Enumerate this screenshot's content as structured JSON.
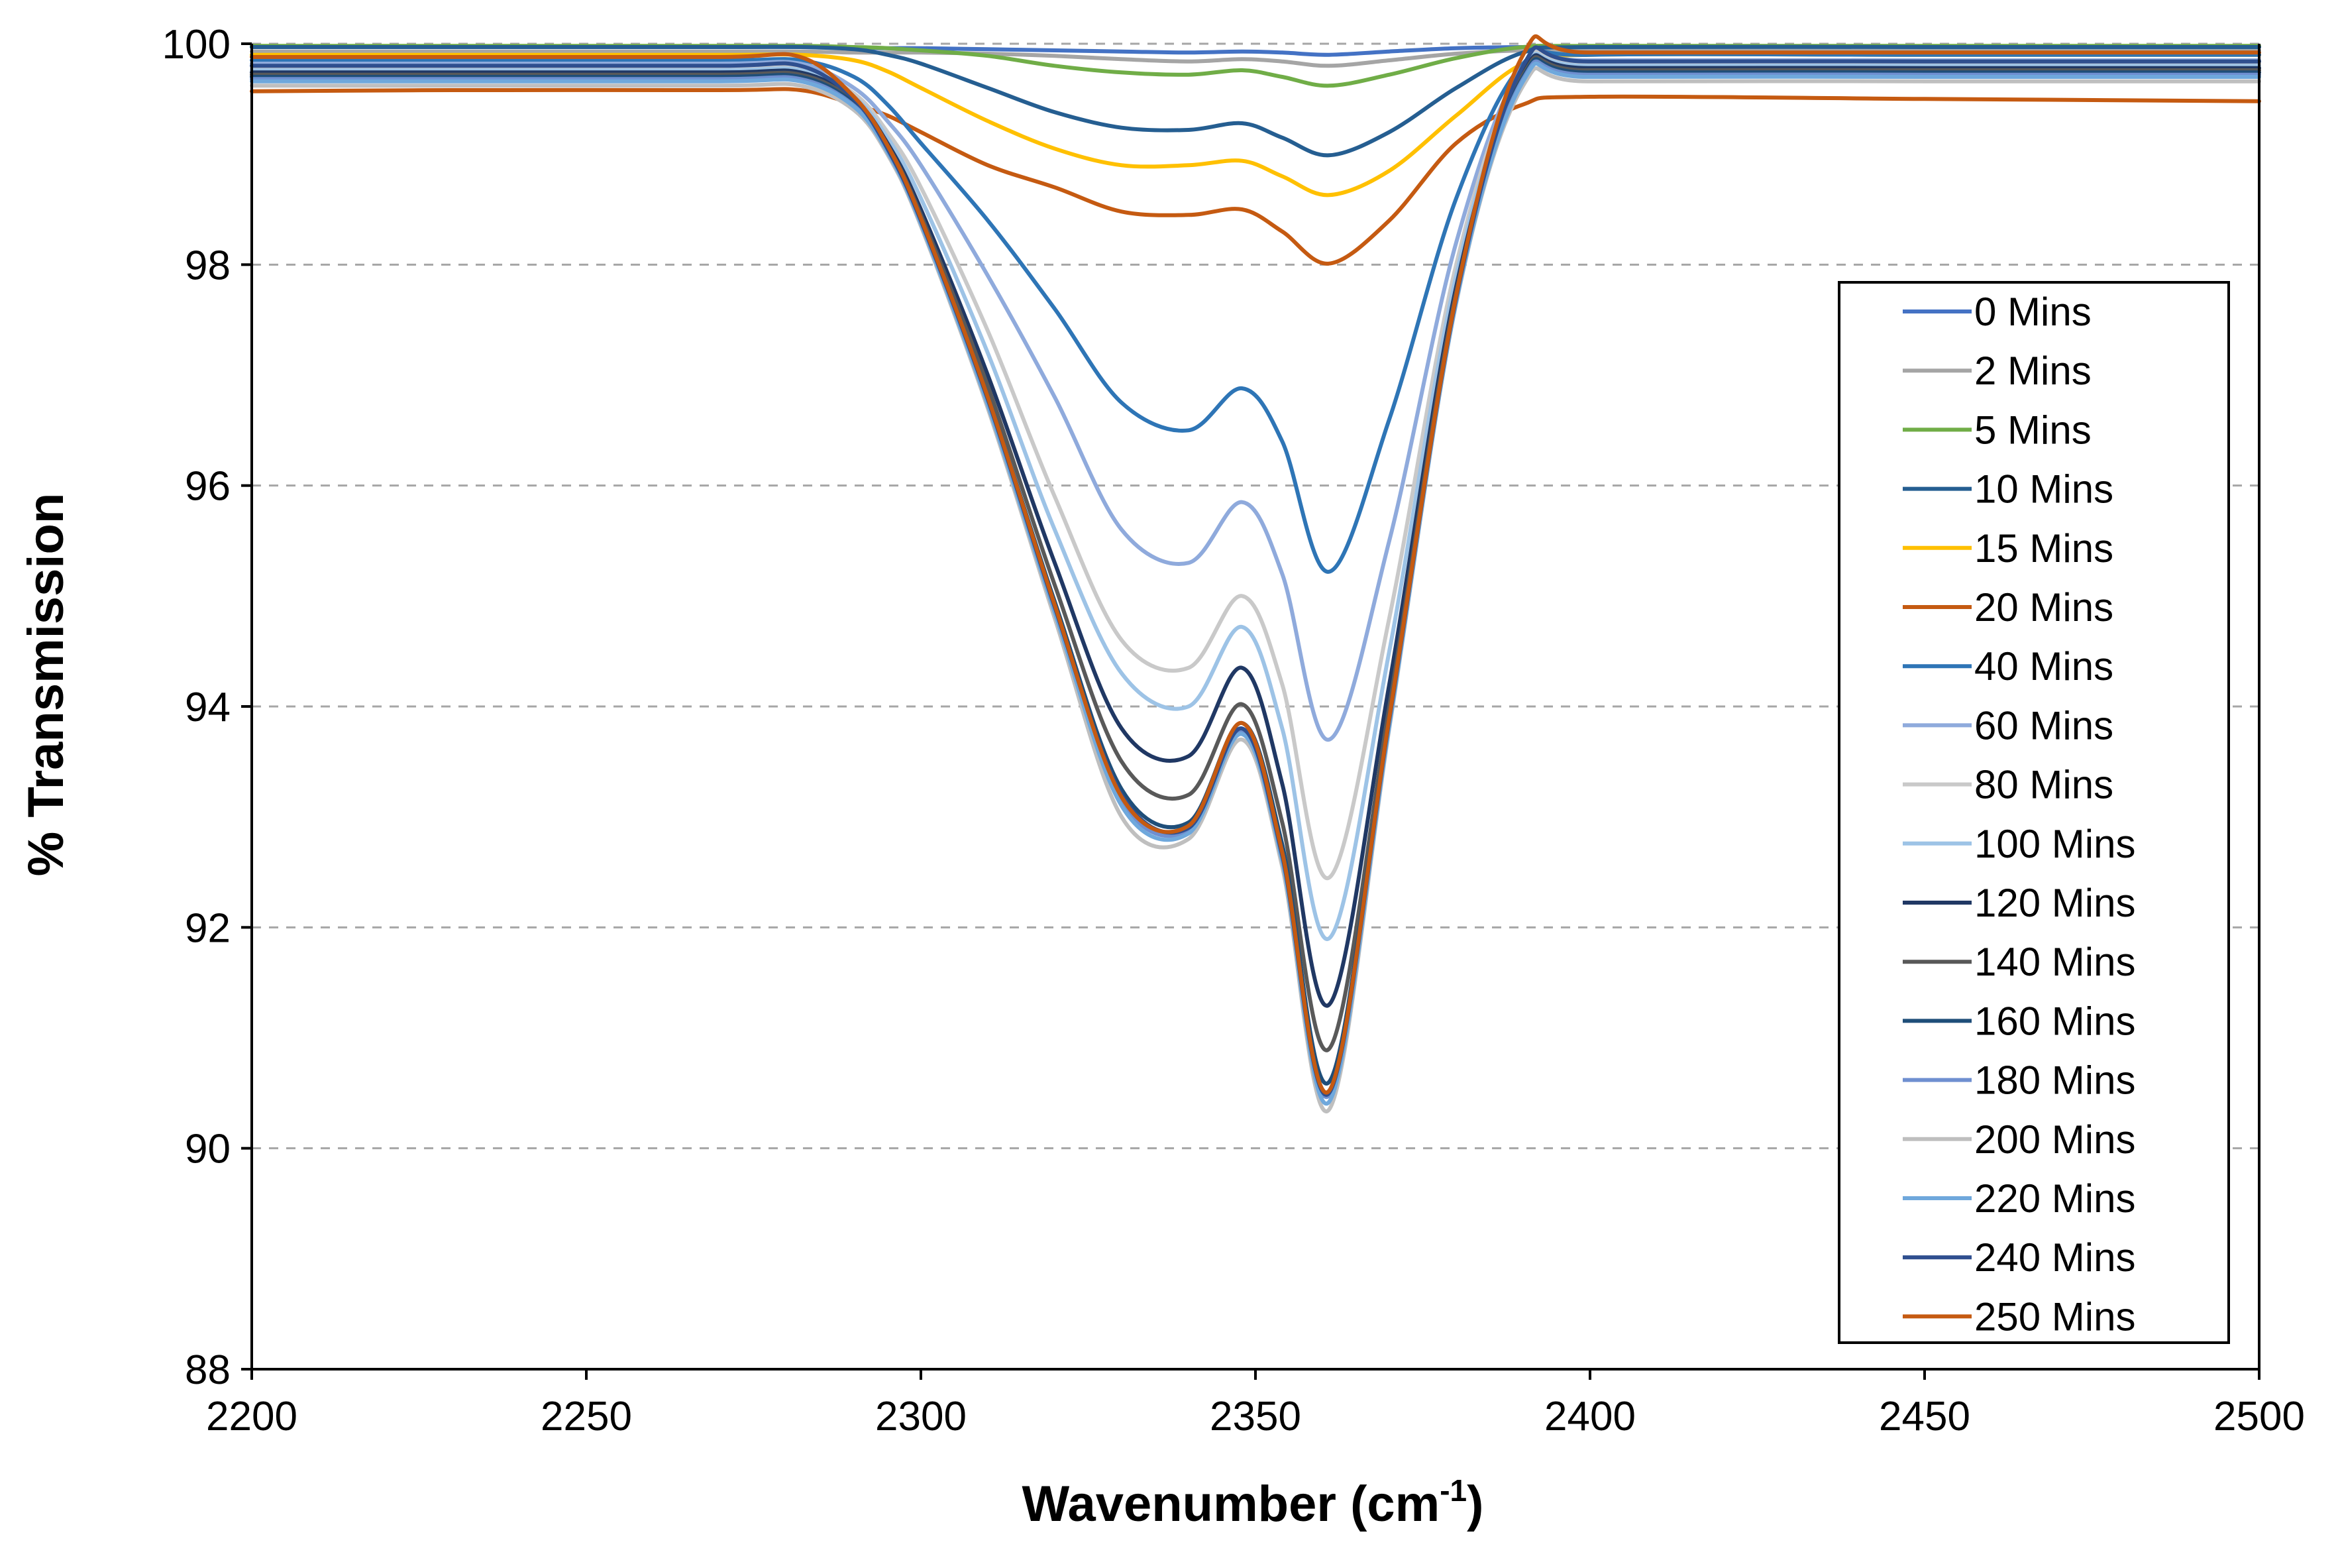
{
  "chart_data": {
    "type": "line",
    "title": "",
    "xlabel": "Wavenumber (cm",
    "xlabel_sup": "-1",
    "xlabel_close": ")",
    "ylabel": "% Transmission",
    "xlim": [
      2200,
      2500
    ],
    "ylim": [
      88,
      100
    ],
    "xticks": [
      2200,
      2250,
      2300,
      2350,
      2400,
      2450,
      2500
    ],
    "yticks": [
      88,
      90,
      92,
      94,
      96,
      98,
      100
    ],
    "xtick_labels": [
      "2200",
      "2250",
      "2300",
      "2350",
      "2400",
      "2450",
      "2500"
    ],
    "ytick_labels": [
      "88",
      "90",
      "92",
      "94",
      "96",
      "98",
      "100"
    ],
    "grid": "horizontal dashed",
    "legend_position": "right",
    "x": [
      2200,
      2230,
      2270,
      2282,
      2290,
      2295,
      2300,
      2310,
      2320,
      2330,
      2340,
      2348,
      2354,
      2361,
      2370,
      2380,
      2390,
      2400,
      2450,
      2500
    ],
    "series": [
      {
        "name": "0 Mins",
        "color": "#4472c4",
        "values": [
          99.97,
          99.97,
          99.97,
          99.97,
          99.96,
          99.96,
          99.96,
          99.95,
          99.94,
          99.93,
          99.92,
          99.93,
          99.92,
          99.9,
          99.93,
          99.96,
          99.97,
          99.97,
          99.97,
          99.97
        ]
      },
      {
        "name": "2 Mins",
        "color": "#a5a5a5",
        "values": [
          99.93,
          99.93,
          99.93,
          99.93,
          99.92,
          99.92,
          99.92,
          99.91,
          99.89,
          99.86,
          99.84,
          99.86,
          99.84,
          99.8,
          99.85,
          99.91,
          99.94,
          99.94,
          99.94,
          99.94
        ]
      },
      {
        "name": "5 Mins",
        "color": "#70ad47",
        "values": [
          99.98,
          99.98,
          99.98,
          99.98,
          99.97,
          99.96,
          99.94,
          99.89,
          99.8,
          99.74,
          99.72,
          99.76,
          99.7,
          99.62,
          99.72,
          99.87,
          99.97,
          99.98,
          99.98,
          99.98
        ]
      },
      {
        "name": "10 Mins",
        "color": "#255e91",
        "values": [
          99.97,
          99.97,
          99.97,
          99.97,
          99.95,
          99.9,
          99.82,
          99.6,
          99.38,
          99.24,
          99.22,
          99.28,
          99.15,
          98.99,
          99.2,
          99.6,
          99.92,
          99.97,
          99.97,
          99.97
        ]
      },
      {
        "name": "15 Mins",
        "color": "#ffc000",
        "values": [
          99.9,
          99.9,
          99.9,
          99.9,
          99.85,
          99.75,
          99.6,
          99.3,
          99.05,
          98.9,
          98.9,
          98.94,
          98.8,
          98.63,
          98.85,
          99.35,
          99.82,
          99.9,
          99.9,
          99.9
        ]
      },
      {
        "name": "20 Mins",
        "color": "#c55a11",
        "values": [
          99.57,
          99.58,
          99.58,
          99.58,
          99.45,
          99.35,
          99.2,
          98.9,
          98.7,
          98.48,
          98.45,
          98.5,
          98.3,
          98.01,
          98.4,
          99.1,
          99.45,
          99.52,
          99.5,
          99.48
        ]
      },
      {
        "name": "40 Mins",
        "color": "#2e75b6",
        "values": [
          99.85,
          99.85,
          99.85,
          99.85,
          99.7,
          99.45,
          99.1,
          98.4,
          97.6,
          96.75,
          96.5,
          96.88,
          96.4,
          95.22,
          96.6,
          98.6,
          99.82,
          99.9,
          99.9,
          99.9
        ]
      },
      {
        "name": "60 Mins",
        "color": "#8faadc",
        "values": [
          99.82,
          99.82,
          99.82,
          99.82,
          99.6,
          99.3,
          98.9,
          97.9,
          96.8,
          95.6,
          95.3,
          95.85,
          95.2,
          93.7,
          95.5,
          98.2,
          99.8,
          99.85,
          99.85,
          99.85
        ]
      },
      {
        "name": "80 Mins",
        "color": "#c9c9c9",
        "values": [
          99.78,
          99.78,
          99.78,
          99.78,
          99.55,
          99.2,
          98.7,
          97.4,
          95.9,
          94.6,
          94.35,
          95.0,
          94.2,
          92.45,
          94.8,
          98.0,
          99.78,
          99.82,
          99.82,
          99.82
        ]
      },
      {
        "name": "100 Mins",
        "color": "#9dc3e6",
        "values": [
          99.76,
          99.76,
          99.76,
          99.76,
          99.52,
          99.15,
          98.6,
          97.2,
          95.6,
          94.3,
          94.0,
          94.72,
          93.8,
          91.9,
          94.5,
          97.9,
          99.76,
          99.8,
          99.8,
          99.8
        ]
      },
      {
        "name": "120 Mins",
        "color": "#203864",
        "values": [
          99.74,
          99.74,
          99.74,
          99.74,
          99.5,
          99.1,
          98.5,
          97.0,
          95.3,
          93.8,
          93.55,
          94.35,
          93.3,
          91.3,
          94.2,
          97.8,
          99.74,
          99.78,
          99.78,
          99.78
        ]
      },
      {
        "name": "140 Mins",
        "color": "#595959",
        "values": [
          99.72,
          99.72,
          99.72,
          99.72,
          99.48,
          99.08,
          98.45,
          96.9,
          95.1,
          93.5,
          93.2,
          94.02,
          92.95,
          90.9,
          94.0,
          97.75,
          99.72,
          99.76,
          99.76,
          99.76
        ]
      },
      {
        "name": "160 Mins",
        "color": "#1f4e79",
        "values": [
          99.7,
          99.7,
          99.7,
          99.7,
          99.46,
          99.05,
          98.4,
          96.8,
          94.95,
          93.25,
          92.95,
          93.85,
          92.75,
          90.6,
          93.9,
          97.7,
          99.7,
          99.74,
          99.74,
          99.74
        ]
      },
      {
        "name": "180 Mins",
        "color": "#6f8fd0",
        "values": [
          99.68,
          99.68,
          99.68,
          99.68,
          99.44,
          99.03,
          98.38,
          96.75,
          94.9,
          93.15,
          92.88,
          93.78,
          92.65,
          90.48,
          93.85,
          97.68,
          99.68,
          99.72,
          99.72,
          99.72
        ]
      },
      {
        "name": "200 Mins",
        "color": "#bfbfbf",
        "values": [
          99.62,
          99.62,
          99.62,
          99.62,
          99.4,
          99.0,
          98.35,
          96.7,
          94.8,
          93.0,
          92.8,
          93.7,
          92.55,
          90.35,
          93.8,
          97.65,
          99.62,
          99.66,
          99.66,
          99.66
        ]
      },
      {
        "name": "220 Mins",
        "color": "#6fa8dc",
        "values": [
          99.66,
          99.66,
          99.66,
          99.66,
          99.43,
          99.02,
          98.37,
          96.73,
          94.85,
          93.1,
          92.85,
          93.75,
          92.6,
          90.42,
          93.82,
          97.66,
          99.66,
          99.7,
          99.7,
          99.7
        ]
      },
      {
        "name": "240 Mins",
        "color": "#2f4f8f",
        "values": [
          99.8,
          99.8,
          99.8,
          99.8,
          99.5,
          99.05,
          98.4,
          96.78,
          94.9,
          93.2,
          92.9,
          93.8,
          92.65,
          90.5,
          93.88,
          97.7,
          99.8,
          99.84,
          99.84,
          99.84
        ]
      },
      {
        "name": "250 Mins",
        "color": "#c55a11",
        "values": [
          99.88,
          99.88,
          99.88,
          99.88,
          99.52,
          99.08,
          98.42,
          96.8,
          94.92,
          93.18,
          92.92,
          93.85,
          92.68,
          90.52,
          93.9,
          97.72,
          99.9,
          99.92,
          99.92,
          99.92
        ]
      }
    ]
  }
}
